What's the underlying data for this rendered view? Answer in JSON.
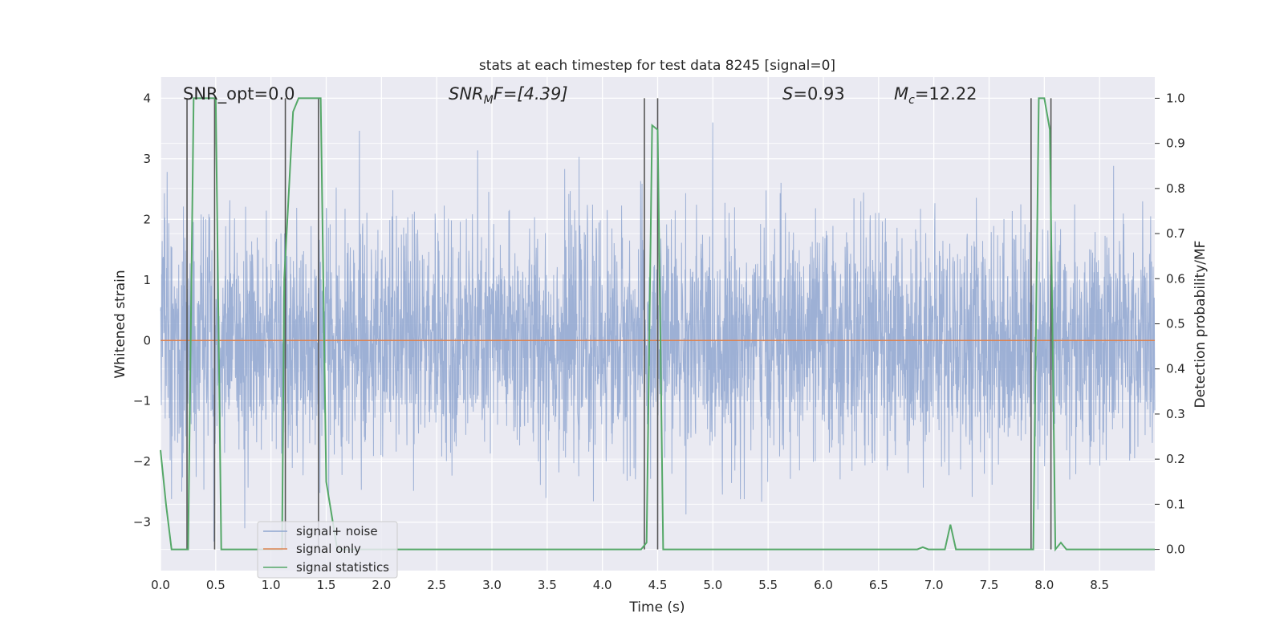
{
  "chart_data": {
    "type": "line",
    "title": "stats at each timestep for test data 8245 [signal=0]",
    "xlabel": "Time (s)",
    "ylabel": "Whitened strain",
    "y2label": "Detection probability/MF",
    "xlim": [
      0.0,
      9.0
    ],
    "ylim": [
      -3.8,
      4.35
    ],
    "y2lim": [
      -0.047,
      1.047
    ],
    "xticks": [
      "0.0",
      "0.5",
      "1.0",
      "1.5",
      "2.0",
      "2.5",
      "3.0",
      "3.5",
      "4.0",
      "4.5",
      "5.0",
      "5.5",
      "6.0",
      "6.5",
      "7.0",
      "7.5",
      "8.0",
      "8.5"
    ],
    "yticks": [
      "4",
      "3",
      "2",
      "1",
      "0",
      "−1",
      "−2",
      "−3"
    ],
    "y2ticks": [
      "1.0",
      "0.9",
      "0.8",
      "0.7",
      "0.6",
      "0.5",
      "0.4",
      "0.3",
      "0.2",
      "0.1",
      "0.0"
    ],
    "grid": true,
    "legend_position": "lower-left",
    "annotations": {
      "snr_opt": "SNR_opt=0.0",
      "snr_mf": "SNR",
      "snr_mf_sub": "M",
      "snr_mf_tail": "F=[4.39]",
      "s_value_pre": "S",
      "s_value_tail": "=0.93",
      "mc_pre": "M",
      "mc_sub": "c",
      "mc_tail": "=12.22"
    },
    "series": [
      {
        "name": "signal+ noise",
        "color": "#8fa6d0",
        "description_values": {
          "distribution": "noise",
          "std": 0.95,
          "max": 3.6,
          "min": -3.4
        }
      },
      {
        "name": "signal only",
        "color": "#dd8452",
        "x": [
          0.0,
          9.0
        ],
        "y": [
          0.0,
          0.0
        ]
      },
      {
        "name": "signal statistics",
        "color": "#55a868",
        "axis": "right",
        "x": [
          0.0,
          0.05,
          0.1,
          0.25,
          0.3,
          0.5,
          0.55,
          0.6,
          0.75,
          1.1,
          1.12,
          1.2,
          1.25,
          1.45,
          1.5,
          1.6,
          1.7,
          4.35,
          4.4,
          4.45,
          4.5,
          4.55,
          4.6,
          6.85,
          6.9,
          6.95,
          7.05,
          7.1,
          7.15,
          7.2,
          7.85,
          7.9,
          7.95,
          8.0,
          8.05,
          8.1,
          8.15,
          8.2,
          9.0
        ],
        "y": [
          0.22,
          0.1,
          0.0,
          0.0,
          1.0,
          1.0,
          0.0,
          0.0,
          0.0,
          0.0,
          0.6,
          0.97,
          1.0,
          1.0,
          0.15,
          0.0,
          0.0,
          0.0,
          0.015,
          0.94,
          0.93,
          0.0,
          0.0,
          0.0,
          0.005,
          0.0,
          0.0,
          0.0,
          0.055,
          0.0,
          0.0,
          0.0,
          1.0,
          1.0,
          0.93,
          0.0,
          0.015,
          0.0,
          0.0
        ]
      }
    ],
    "vertical_markers": [
      0.24,
      0.49,
      1.13,
      1.43,
      4.38,
      4.5,
      7.88,
      8.06
    ]
  }
}
